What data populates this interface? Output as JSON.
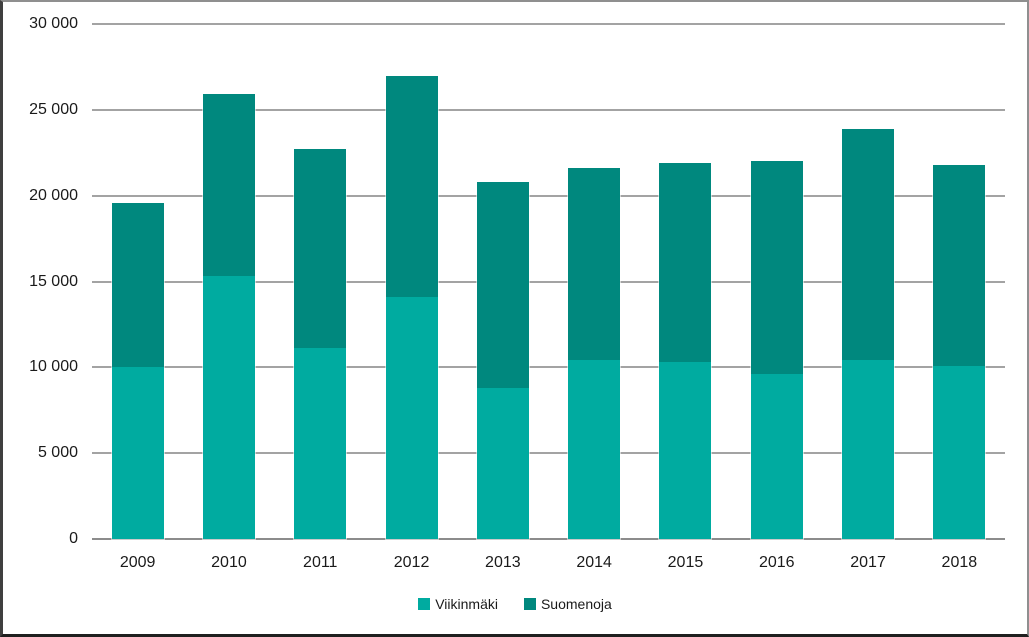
{
  "chart_data": {
    "type": "bar",
    "stacked": true,
    "title": "",
    "xlabel": "",
    "ylabel": "",
    "categories": [
      "2009",
      "2010",
      "2011",
      "2012",
      "2013",
      "2014",
      "2015",
      "2016",
      "2017",
      "2018"
    ],
    "series": [
      {
        "name": "Viikinmäki",
        "color": "#00aba0",
        "values": [
          10000,
          15300,
          11100,
          14100,
          8800,
          10400,
          10300,
          9600,
          10400,
          10100
        ]
      },
      {
        "name": "Suomenoja",
        "color": "#00887e",
        "values": [
          9600,
          10600,
          11600,
          12900,
          12000,
          11200,
          11600,
          12400,
          13500,
          11700
        ]
      }
    ],
    "ylim": [
      0,
      30000
    ],
    "ytick_interval": 5000,
    "ytick_labels": [
      "0",
      "5 000",
      "10 000",
      "15 000",
      "20 000",
      "25 000",
      "30 000"
    ],
    "grid": true,
    "legend_position": "bottom"
  },
  "colors": {
    "viikinmaki": "#00aba0",
    "suomenoja": "#00887e",
    "gridline": "#a3a3a3",
    "axis_baseline": "#8c8c8c",
    "text": "#1a1a1a",
    "background": "#ffffff",
    "frame_light": "#8f8f8f",
    "frame_dark": "#1f1f1f"
  }
}
